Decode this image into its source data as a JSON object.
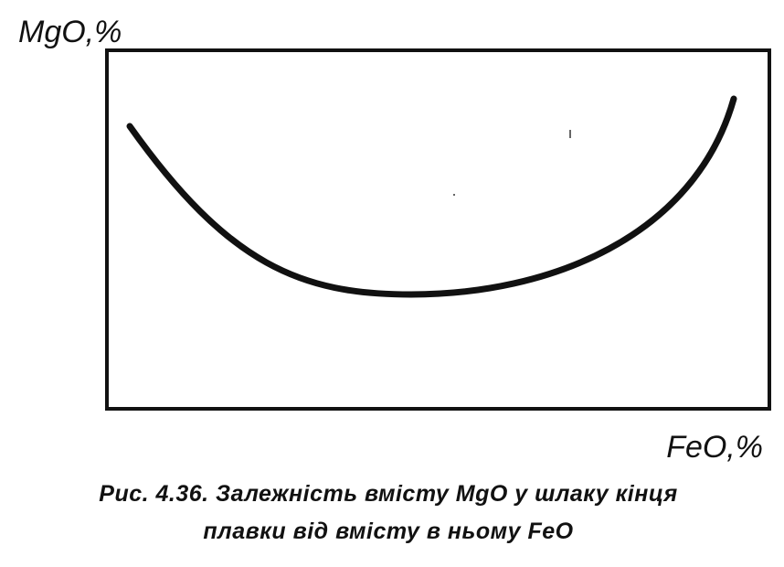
{
  "axes": {
    "y_label": "MgO,%",
    "x_label": "FeO,%"
  },
  "caption": {
    "line1": "Рис. 4.36. Залежність вмісту MgO у шлаку кінця",
    "line2": "плавки від вмісту в ньому FeO"
  }
}
